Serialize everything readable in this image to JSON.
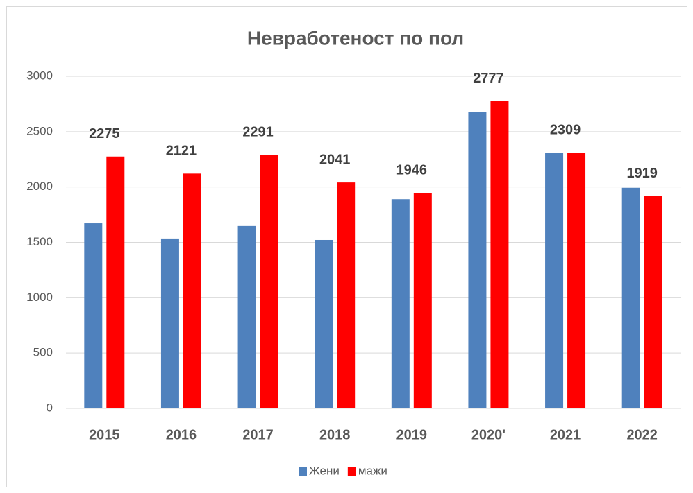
{
  "chart_data": {
    "type": "bar",
    "title": "Невработеност по пол",
    "categories": [
      "2015",
      "2016",
      "2017",
      "2018",
      "2019",
      "2020'",
      "2021",
      "2022"
    ],
    "series": [
      {
        "name": "Жени",
        "color": "#4f81bd",
        "values": [
          1672,
          1535,
          1648,
          1522,
          1890,
          2680,
          2305,
          1993
        ],
        "show_labels": false
      },
      {
        "name": "мажи",
        "color": "#ff0000",
        "values": [
          2275,
          2121,
          2291,
          2041,
          1946,
          2777,
          2309,
          1919
        ],
        "show_labels": true
      }
    ],
    "ylim": [
      0,
      3000
    ],
    "yticks": [
      0,
      500,
      1000,
      1500,
      2000,
      2500,
      3000
    ],
    "grid": true,
    "legend": "bottom"
  }
}
